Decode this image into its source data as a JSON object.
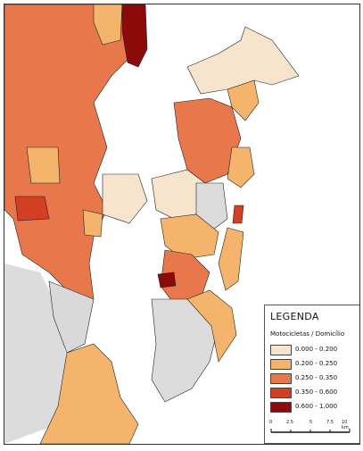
{
  "legend": {
    "title": "LEGENDA",
    "subtitle": "Motocicletas / Domicílio",
    "classes": [
      {
        "label": "0.000 - 0.200",
        "color": "#f7e4cc"
      },
      {
        "label": "0.200 - 0.250",
        "color": "#f5b46b"
      },
      {
        "label": "0.250 - 0.350",
        "color": "#e8784b"
      },
      {
        "label": "0.350 - 0.600",
        "color": "#d23f22"
      },
      {
        "label": "0.600 - 1.000",
        "color": "#8c0a0a"
      }
    ]
  },
  "scale": {
    "ticks": [
      "0",
      "2.5",
      "5",
      "7.5",
      "10 km"
    ]
  },
  "colors": {
    "background_terrain": "#dcdcdc",
    "water": "#ffffff",
    "boundary": "#222222"
  }
}
